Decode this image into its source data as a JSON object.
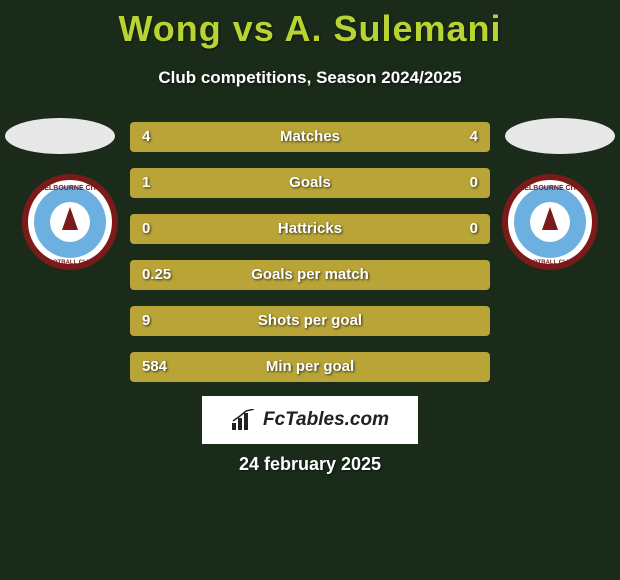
{
  "header": {
    "title": "Wong vs A. Sulemani",
    "subtitle": "Club competitions, Season 2024/2025"
  },
  "colors": {
    "accent_left": "#b8a437",
    "accent_right": "#b8a437",
    "background": "#1a2b1a",
    "title_color": "#b8d432",
    "text_color": "#ffffff",
    "oval_color": "#e8e8e8",
    "logo_bg": "#ffffff",
    "badge_outer": "#7a1a1a",
    "badge_ring": "#ffffff",
    "badge_inner": "#6bb0e0",
    "badge_center": "#ffffff"
  },
  "stats": [
    {
      "label": "Matches",
      "left_val": "4",
      "right_val": "4",
      "left_pct": 50,
      "right_pct": 50
    },
    {
      "label": "Goals",
      "left_val": "1",
      "right_val": "0",
      "left_pct": 75,
      "right_pct": 25
    },
    {
      "label": "Hattricks",
      "left_val": "0",
      "right_val": "0",
      "left_pct": 50,
      "right_pct": 50
    },
    {
      "label": "Goals per match",
      "left_val": "0.25",
      "right_val": "",
      "left_pct": 100,
      "right_pct": 0
    },
    {
      "label": "Shots per goal",
      "left_val": "9",
      "right_val": "",
      "left_pct": 100,
      "right_pct": 0
    },
    {
      "label": "Min per goal",
      "left_val": "584",
      "right_val": "",
      "left_pct": 100,
      "right_pct": 0
    }
  ],
  "logo": {
    "text": "FcTables.com"
  },
  "footer": {
    "date": "24 february 2025"
  }
}
